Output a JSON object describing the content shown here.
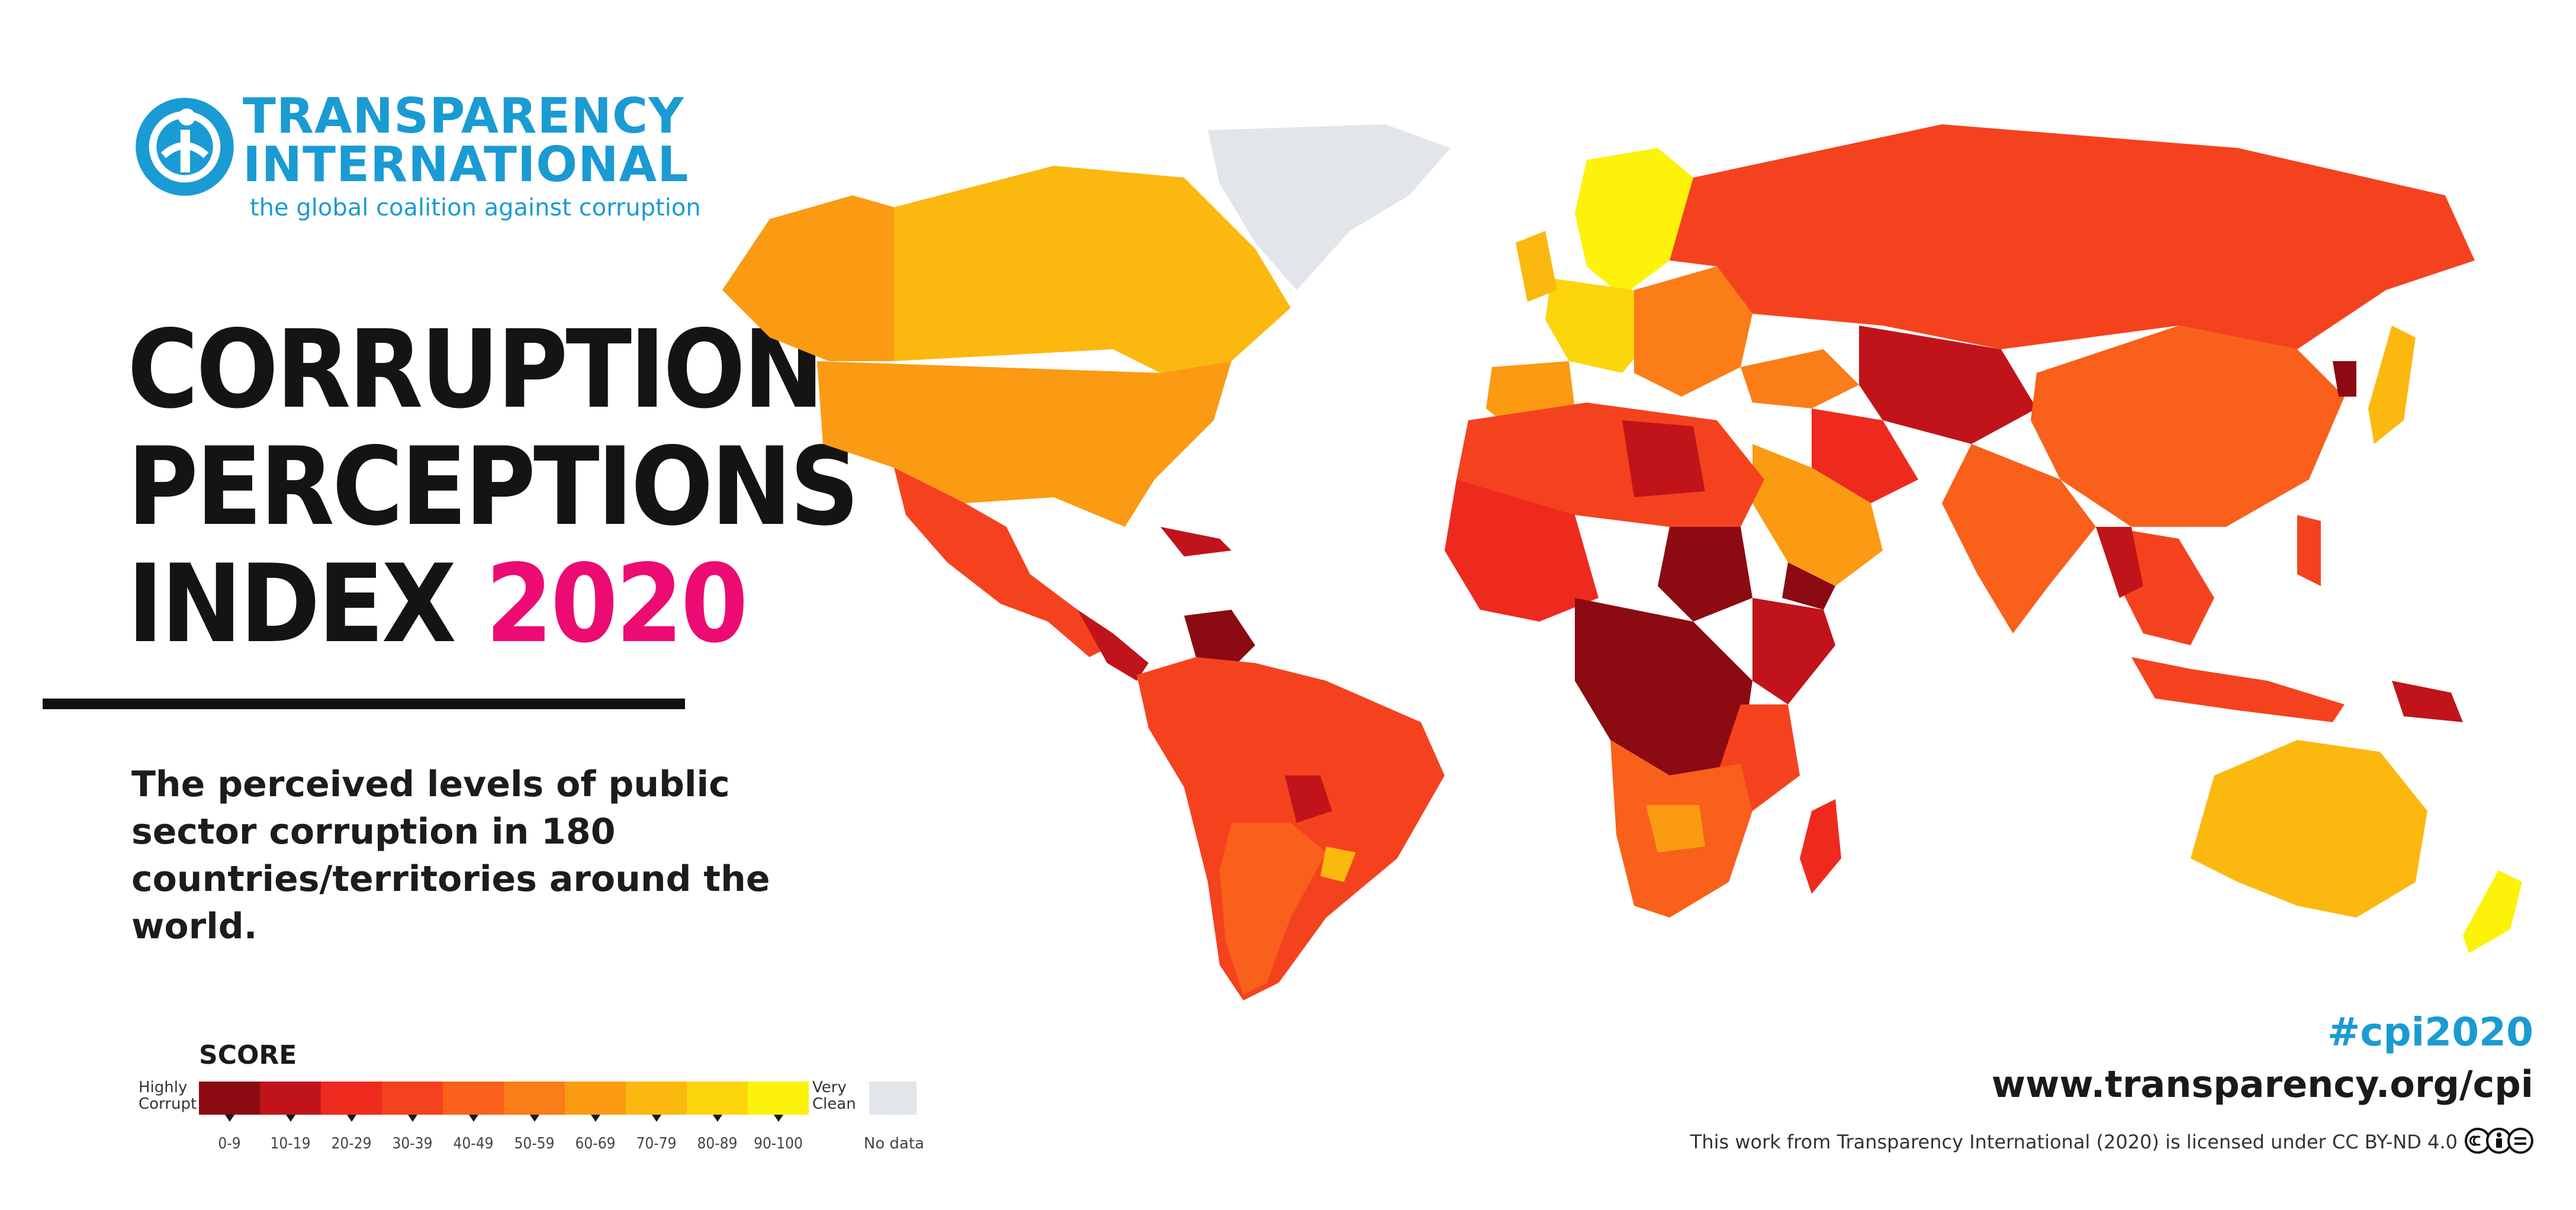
{
  "organization": {
    "name_line1": "TRANSPARENCY",
    "name_line2": "INTERNATIONAL",
    "tagline": "the global coalition against corruption"
  },
  "title": {
    "line1": "CORRUPTION",
    "line2": "PERCEPTIONS",
    "line3": "INDEX",
    "year": "2020"
  },
  "subtitle": "The perceived levels of public sector corruption in 180 countries/territories around the world.",
  "legend": {
    "title": "SCORE",
    "low_label": "Highly Corrupt",
    "high_label": "Very Clean",
    "ranges": [
      "0-9",
      "10-19",
      "20-29",
      "30-39",
      "40-49",
      "50-59",
      "60-69",
      "70-79",
      "80-89",
      "90-100"
    ],
    "colors": [
      "#8c0a12",
      "#c0141a",
      "#ee2a1e",
      "#f5421e",
      "#f8601b",
      "#fa7d17",
      "#fb9a13",
      "#fbb80f",
      "#fcd50c",
      "#fdf20a"
    ],
    "no_data_label": "No data",
    "no_data_color": "#e2e5e9"
  },
  "footer": {
    "hashtag": "#cpi2020",
    "website": "www.transparency.org/cpi",
    "license": "This work from Transparency International (2020) is licensed under CC BY-ND 4.0"
  },
  "brand_colors": {
    "accent_blue": "#1a9bd3",
    "accent_pink": "#ec0b72"
  },
  "icons": [
    "transparency-logo-icon",
    "cc-icon",
    "cc-by-icon",
    "cc-nd-icon"
  ]
}
